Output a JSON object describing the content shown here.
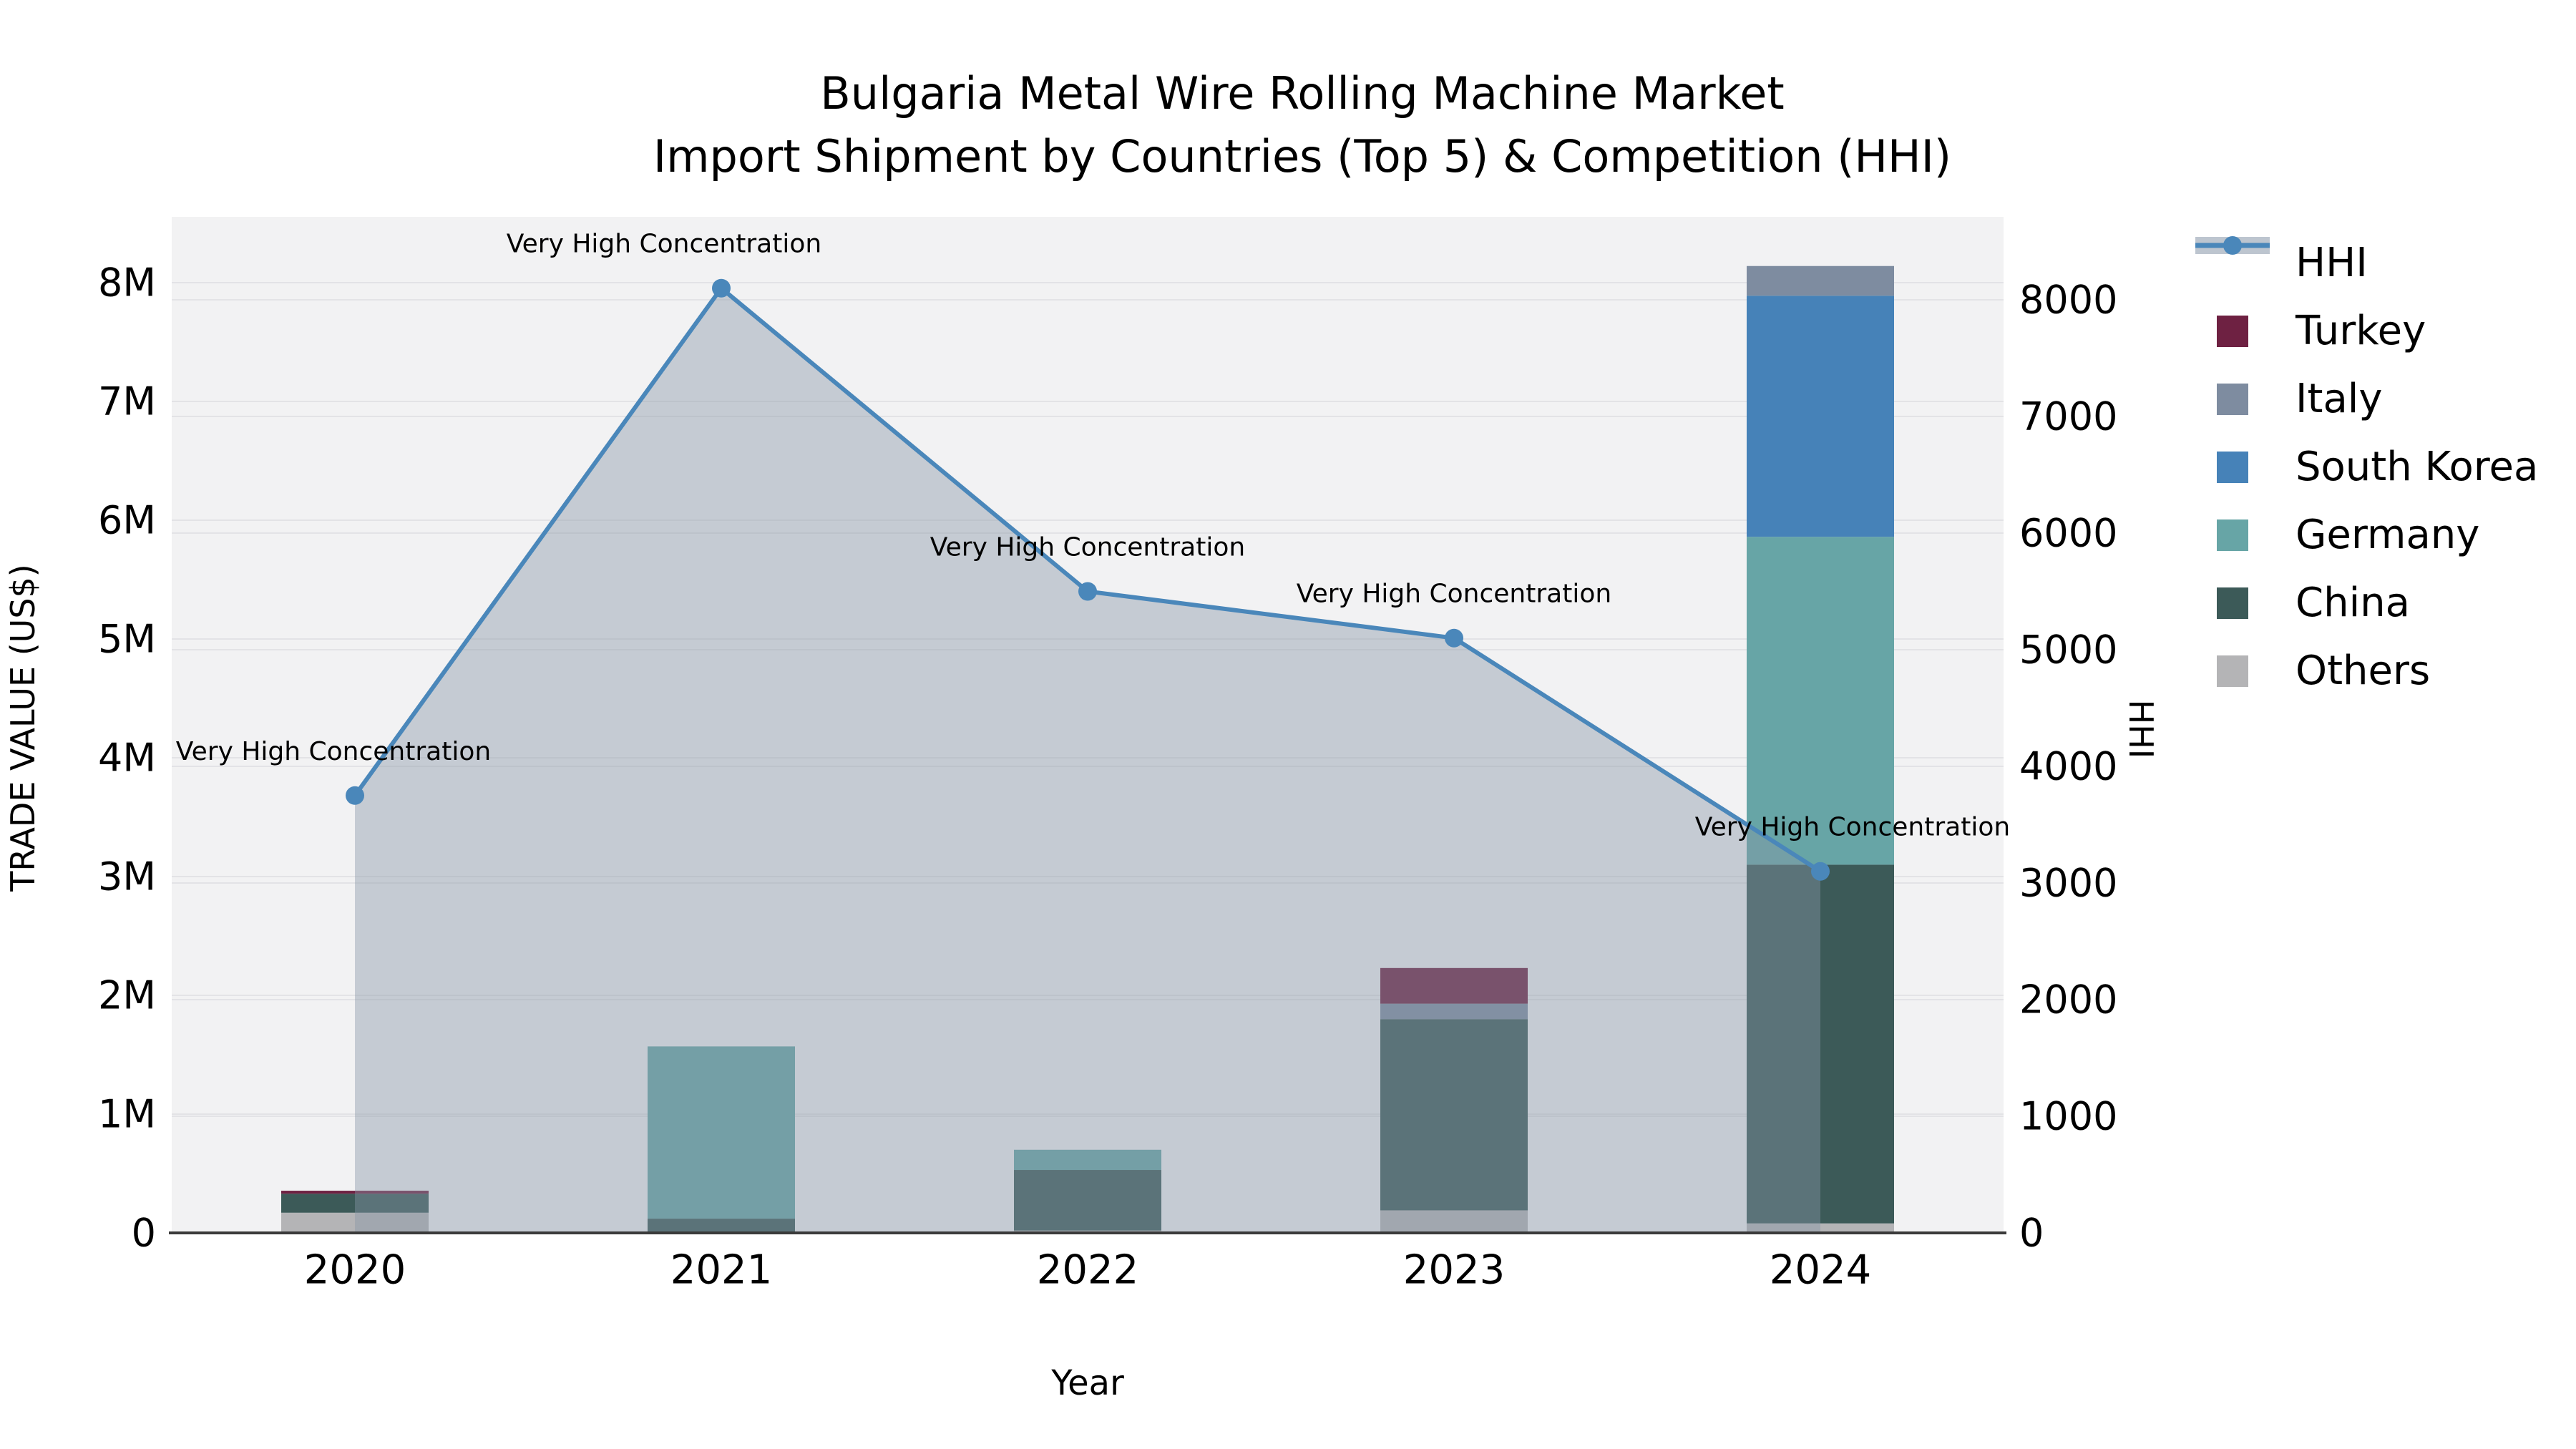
{
  "title": {
    "line1": "Bulgaria Metal Wire Rolling Machine Market",
    "line2": "Import Shipment by Countries (Top 5) & Competition (HHI)"
  },
  "axes": {
    "left": {
      "label": "TRADE VALUE (US$)",
      "ticks": [
        "0",
        "1M",
        "2M",
        "3M",
        "4M",
        "5M",
        "6M",
        "7M",
        "8M"
      ]
    },
    "right": {
      "label": "HHI",
      "ticks": [
        "0",
        "1000",
        "2000",
        "3000",
        "4000",
        "5000",
        "6000",
        "7000",
        "8000"
      ]
    },
    "x": {
      "label": "Year"
    }
  },
  "legend": {
    "items": [
      {
        "label": "HHI",
        "color": "#4a87ba",
        "type": "line"
      },
      {
        "label": "Turkey",
        "color": "#6e2142",
        "type": "patch"
      },
      {
        "label": "Italy",
        "color": "#7e8ca0",
        "type": "patch"
      },
      {
        "label": "South Korea",
        "color": "#4682b8",
        "type": "patch"
      },
      {
        "label": "Germany",
        "color": "#67a5a6",
        "type": "patch"
      },
      {
        "label": "China",
        "color": "#3c5a58",
        "type": "patch"
      },
      {
        "label": "Others",
        "color": "#b4b4b6",
        "type": "patch"
      }
    ]
  },
  "chart_data": {
    "type": "combo: stacked bar (trade value, left axis) + line with shaded area (HHI, right axis)",
    "title": "Bulgaria Metal Wire Rolling Machine Market — Import Shipment by Countries (Top 5) & Competition (HHI)",
    "categories": [
      "2020",
      "2021",
      "2022",
      "2023",
      "2024"
    ],
    "bar_series_bottom_to_top": [
      {
        "name": "Others",
        "color": "#b4b4b6",
        "values": [
          170000,
          0,
          20000,
          190000,
          80000
        ]
      },
      {
        "name": "China",
        "color": "#3c5a58",
        "values": [
          160000,
          120000,
          510000,
          1610000,
          3020000
        ]
      },
      {
        "name": "Germany",
        "color": "#67a5a6",
        "values": [
          0,
          1450000,
          170000,
          0,
          2760000
        ]
      },
      {
        "name": "South Korea",
        "color": "#4682b8",
        "values": [
          0,
          0,
          0,
          0,
          2030000
        ]
      },
      {
        "name": "Italy",
        "color": "#7e8ca0",
        "values": [
          0,
          0,
          0,
          130000,
          250000
        ]
      },
      {
        "name": "Turkey",
        "color": "#6e2142",
        "values": [
          25000,
          0,
          0,
          300000,
          0
        ]
      }
    ],
    "bar_totals": [
      355000,
      1570000,
      700000,
      2230000,
      8140000
    ],
    "line_series": {
      "name": "HHI",
      "color": "#4a87ba",
      "area_color": "rgba(135,149,168,0.42)",
      "values": [
        3750,
        8100,
        5500,
        5100,
        3100
      ]
    },
    "annotations": {
      "text": "Very High Concentration",
      "applies_to_points": [
        "2020",
        "2021",
        "2022",
        "2023",
        "2024"
      ]
    },
    "xlabel": "Year",
    "ylabel": "TRADE VALUE (US$)",
    "y2label": "HHI",
    "left_axis": {
      "tick_step": 1000000,
      "max_tick": 8000000,
      "tick_labels": [
        "0",
        "1M",
        "2M",
        "3M",
        "4M",
        "5M",
        "6M",
        "7M",
        "8M"
      ]
    },
    "right_axis": {
      "tick_step": 1000,
      "max_tick": 8000,
      "tick_labels": [
        "0",
        "1000",
        "2000",
        "3000",
        "4000",
        "5000",
        "6000",
        "7000",
        "8000"
      ]
    },
    "grid": true,
    "plot_background": "#f2f2f3",
    "legend_position": "right"
  }
}
